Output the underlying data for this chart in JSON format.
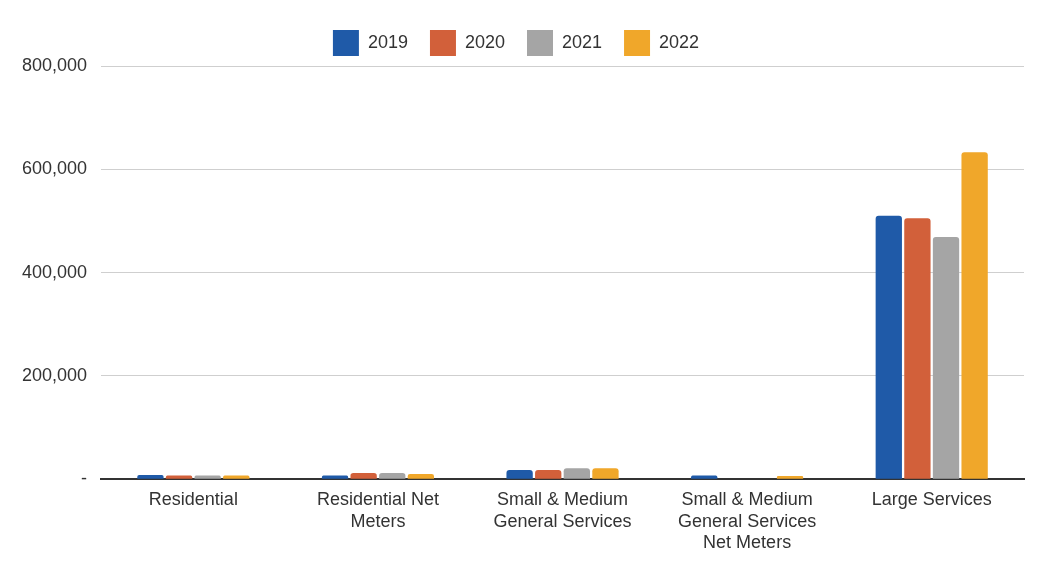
{
  "chart_data": {
    "type": "bar",
    "categories": [
      "Residential",
      "Residential Net Meters",
      "Small & Medium General Services",
      "Small & Medium General Services Net Meters",
      "Large Services"
    ],
    "series": [
      {
        "name": "2019",
        "color": "#1f5aa8",
        "values": [
          8000,
          7000,
          18000,
          7000,
          510000
        ]
      },
      {
        "name": "2020",
        "color": "#d2603a",
        "values": [
          7000,
          12000,
          18000,
          0,
          505000
        ]
      },
      {
        "name": "2021",
        "color": "#a5a5a5",
        "values": [
          7000,
          12000,
          21000,
          0,
          469000
        ]
      },
      {
        "name": "2022",
        "color": "#f0a72a",
        "values": [
          7000,
          10000,
          21000,
          6000,
          633000
        ]
      }
    ],
    "ylim": [
      0,
      800000
    ],
    "yticks": [
      {
        "value": 0,
        "label": "-"
      },
      {
        "value": 200000,
        "label": "200,000"
      },
      {
        "value": 400000,
        "label": "400,000"
      },
      {
        "value": 600000,
        "label": "600,000"
      },
      {
        "value": 800000,
        "label": "800,000"
      }
    ],
    "grid": "y",
    "legend": "top"
  }
}
